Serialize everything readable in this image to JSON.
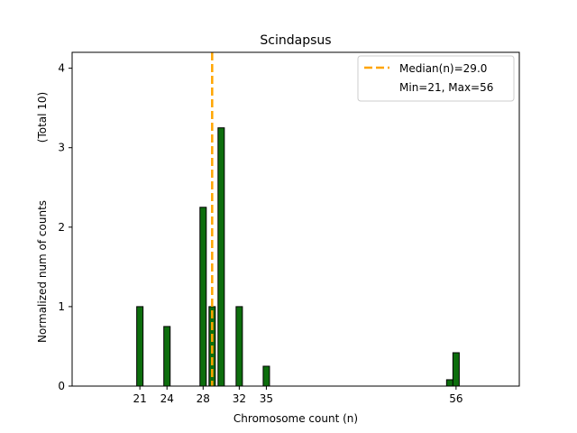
{
  "chart_data": {
    "type": "bar",
    "title": "Scindapsus",
    "xlabel": "Chromosome count (n)",
    "ylabel_main": "Normalized num of counts",
    "ylabel_sub": "(Total 10)",
    "xlim": [
      13.5,
      63
    ],
    "ylim": [
      0,
      4.2
    ],
    "bar_width": 0.7,
    "x_ticks": [
      21,
      24,
      28,
      32,
      35,
      56
    ],
    "y_ticks": [
      0,
      1,
      2,
      3,
      4
    ],
    "bars": [
      {
        "x": 21,
        "value": 1.0
      },
      {
        "x": 24,
        "value": 0.75
      },
      {
        "x": 28,
        "value": 2.25
      },
      {
        "x": 29,
        "value": 1.0
      },
      {
        "x": 30,
        "value": 3.25
      },
      {
        "x": 32,
        "value": 1.0
      },
      {
        "x": 35,
        "value": 0.25
      },
      {
        "x": 55.3,
        "value": 0.08
      },
      {
        "x": 56,
        "value": 0.42
      }
    ],
    "median": 29.0,
    "legend": {
      "placement": "top-right",
      "median_label": "Median(n)=29.0",
      "range_label": "Min=21, Max=56"
    },
    "colors": {
      "bar_fill": "#0d6e0d",
      "bar_edge": "#000000",
      "median_line": "#ffa500"
    },
    "grid": false
  }
}
